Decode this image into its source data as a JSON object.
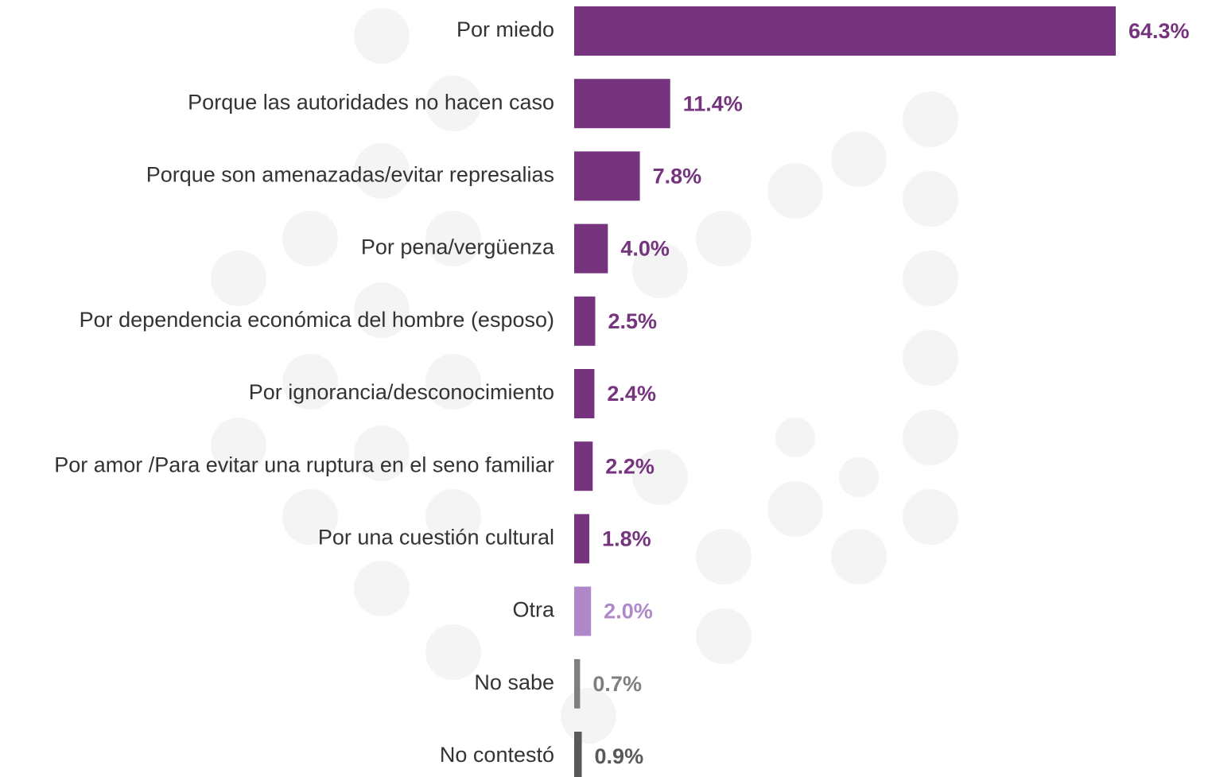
{
  "chart_data": {
    "type": "barh",
    "categories": [
      "Por miedo",
      "Porque las autoridades no hacen caso",
      "Porque son amenazadas/evitar represalias",
      "Por pena/vergüenza",
      "Por dependencia económica del hombre (esposo)",
      "Por ignorancia/desconocimiento",
      "Por amor /Para evitar una ruptura en el seno familiar",
      "Por una cuestión cultural",
      "Otra",
      "No sabe",
      "No contestó"
    ],
    "values": [
      64.3,
      11.4,
      7.8,
      4.0,
      2.5,
      2.4,
      2.2,
      1.8,
      2.0,
      0.7,
      0.9
    ],
    "value_labels": [
      "64.3%",
      "11.4%",
      "7.8%",
      "4.0%",
      "2.5%",
      "2.4%",
      "2.2%",
      "1.8%",
      "2.0%",
      "0.7%",
      "0.9%"
    ],
    "colors": [
      "#76347f",
      "#76347f",
      "#76347f",
      "#76347f",
      "#76347f",
      "#76347f",
      "#76347f",
      "#76347f",
      "#b088c9",
      "#7f7f7f",
      "#595959"
    ]
  }
}
